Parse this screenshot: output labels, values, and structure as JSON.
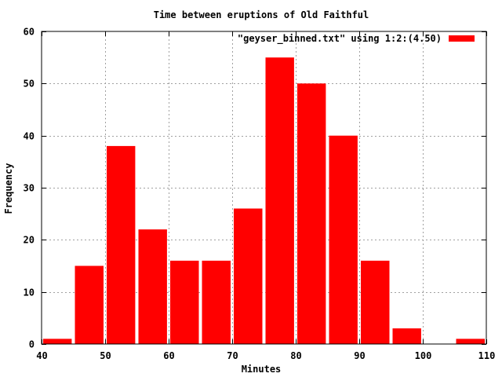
{
  "chart_data": {
    "type": "bar",
    "title": "Time between eruptions of Old Faithful",
    "xlabel": "Minutes",
    "ylabel": "Frequency",
    "xlim": [
      40,
      110
    ],
    "ylim": [
      0,
      60
    ],
    "xticks": [
      40,
      50,
      60,
      70,
      80,
      90,
      100,
      110
    ],
    "yticks": [
      0,
      10,
      20,
      30,
      40,
      50,
      60
    ],
    "grid": true,
    "legend_position": "top-right",
    "bar_width": 4.5,
    "series": [
      {
        "name": "\"geyser_binned.txt\" using 1:2:(4.50)",
        "color": "#ff0000",
        "x": [
          42.5,
          47.5,
          52.5,
          57.5,
          62.5,
          67.5,
          72.5,
          77.5,
          82.5,
          87.5,
          92.5,
          97.5,
          102.5,
          107.5
        ],
        "values": [
          1,
          15,
          38,
          22,
          16,
          16,
          26,
          55,
          50,
          40,
          16,
          3,
          0,
          1
        ]
      }
    ]
  }
}
